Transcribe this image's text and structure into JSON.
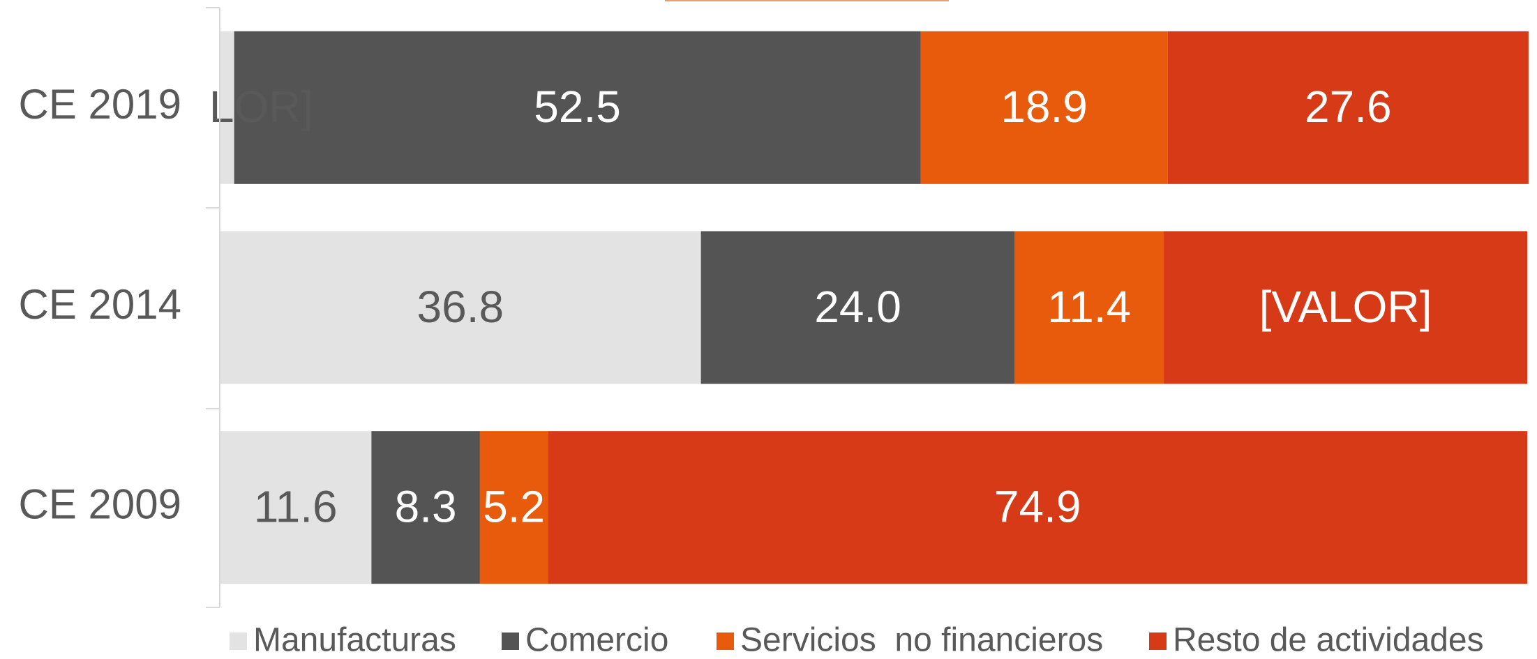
{
  "chart_data": {
    "type": "stacked_barh",
    "categories": [
      "CE 2019",
      "CE 2014",
      "CE 2009"
    ],
    "xlim": [
      0,
      100
    ],
    "series": [
      {
        "name": "Manufacturas",
        "color": "#e3e3e3",
        "label_color": "#595959",
        "values": [
          1.1,
          36.8,
          11.6
        ],
        "value_labels": [
          "[VALOR]",
          "36.8",
          "11.6"
        ]
      },
      {
        "name": "Comercio",
        "color": "#545454",
        "label_color": "#ffffff",
        "values": [
          52.5,
          24,
          8.3
        ],
        "value_labels": [
          "52.5",
          "24.0",
          "8.3"
        ]
      },
      {
        "name": "Servicios  no financieros",
        "color": "#e85a0c",
        "label_color": "#ffffff",
        "values": [
          18.9,
          11.4,
          5.2
        ],
        "value_labels": [
          "18.9",
          "11.4",
          "5.2"
        ]
      },
      {
        "name": "Resto de actividades",
        "color": "#d63a17",
        "label_color": "#ffffff",
        "values": [
          27.6,
          27.8,
          74.9
        ],
        "value_labels": [
          "27.6",
          "[VALOR]",
          "74.9"
        ]
      }
    ]
  }
}
